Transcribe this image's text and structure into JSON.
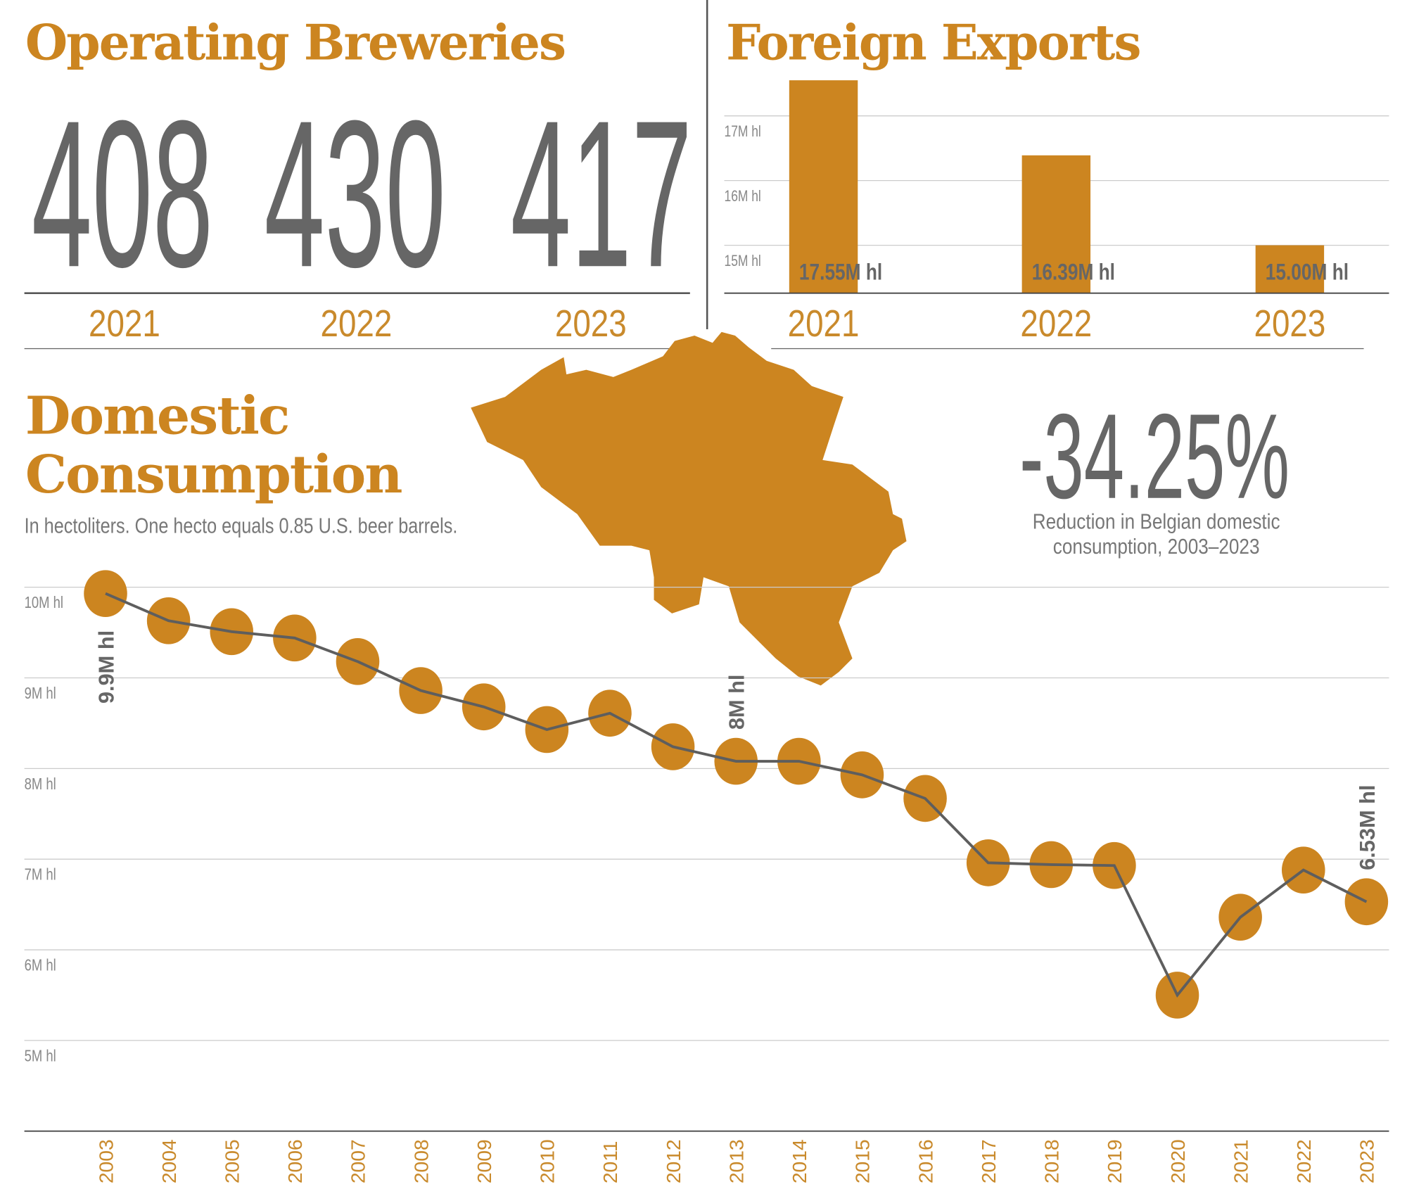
{
  "colors": {
    "accent": "#cc8520",
    "text": "#666666",
    "grid": "#cccccc"
  },
  "breweries": {
    "title": "Operating Breweries",
    "items": [
      {
        "value": "408",
        "year": "2021"
      },
      {
        "value": "430",
        "year": "2022"
      },
      {
        "value": "417",
        "year": "2023"
      }
    ]
  },
  "exports": {
    "title": "Foreign Exports"
  },
  "domestic": {
    "title_line1": "Domestic",
    "title_line2": "Consumption",
    "subtitle": "In hectoliters. One hecto equals 0.85 U.S. beer barrels.",
    "map_icon": "belgium-map",
    "stat": {
      "value": "-34.25%",
      "caption_line1": "Reduction in Belgian domestic",
      "caption_line2": "consumption, 2003–2023"
    }
  },
  "chart_data": [
    {
      "type": "bar",
      "title": "Foreign Exports",
      "categories": [
        "2021",
        "2022",
        "2023"
      ],
      "values": [
        17.55,
        16.39,
        15.0
      ],
      "data_labels": [
        "17.55M hl",
        "16.39M hl",
        "15.00M hl"
      ],
      "yticks": [
        {
          "value": 15,
          "label": "15M hl"
        },
        {
          "value": 16,
          "label": "16M hl"
        },
        {
          "value": 17,
          "label": "17M hl"
        }
      ],
      "ylim": [
        14.26,
        17.8
      ],
      "grid": true,
      "unit": "M hl"
    },
    {
      "type": "line",
      "title": "Domestic Consumption",
      "x": [
        "2003",
        "2004",
        "2005",
        "2006",
        "2007",
        "2008",
        "2009",
        "2010",
        "2011",
        "2012",
        "2013",
        "2014",
        "2015",
        "2016",
        "2017",
        "2018",
        "2019",
        "2020",
        "2021",
        "2022",
        "2023"
      ],
      "y": [
        9.93,
        9.63,
        9.51,
        9.44,
        9.18,
        8.86,
        8.68,
        8.43,
        8.61,
        8.24,
        8.08,
        8.08,
        7.93,
        7.67,
        6.96,
        6.94,
        6.93,
        5.5,
        6.36,
        6.88,
        6.53
      ],
      "yticks": [
        {
          "value": 10,
          "label": "10M hl"
        },
        {
          "value": 9,
          "label": "9M hl"
        },
        {
          "value": 8,
          "label": "8M hl"
        },
        {
          "value": 7,
          "label": "7M hl"
        },
        {
          "value": 6,
          "label": "6M hl"
        },
        {
          "value": 5,
          "label": "5M hl"
        }
      ],
      "ylim": [
        4,
        10.3
      ],
      "grid": true,
      "markers": "circle",
      "annotations": [
        {
          "x": "2003",
          "label": "9.9M hl",
          "position": "below"
        },
        {
          "x": "2013",
          "label": "8M hl",
          "position": "above"
        },
        {
          "x": "2023",
          "label": "6.53M hl",
          "position": "above"
        }
      ]
    }
  ]
}
